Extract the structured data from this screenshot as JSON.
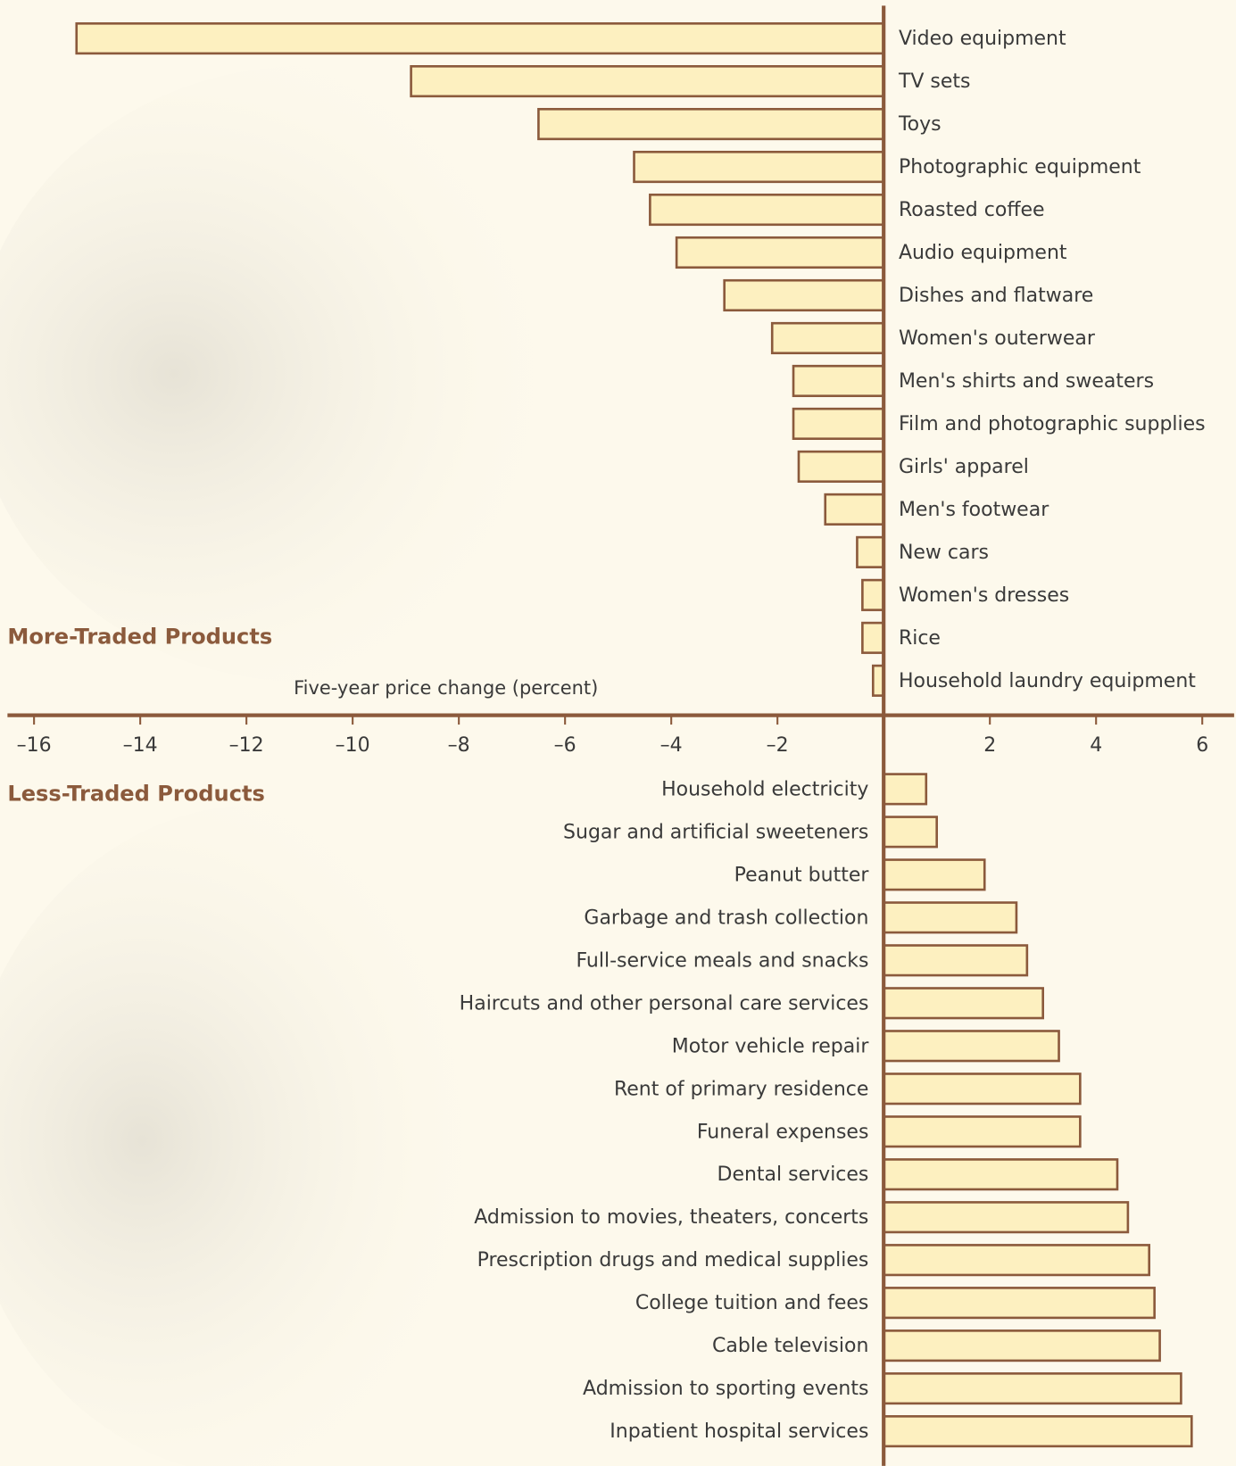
{
  "chart_data": {
    "type": "bar",
    "orientation": "horizontal",
    "x_label": "Five-year price change (percent)",
    "xlim": [
      -16.5,
      6.6
    ],
    "xticks": [
      {
        "value": -16,
        "label": "–16"
      },
      {
        "value": -14,
        "label": "–14"
      },
      {
        "value": -12,
        "label": "–12"
      },
      {
        "value": -10,
        "label": "–10"
      },
      {
        "value": -8,
        "label": "–8"
      },
      {
        "value": -6,
        "label": "–6"
      },
      {
        "value": -4,
        "label": "–4"
      },
      {
        "value": -2,
        "label": "–2"
      },
      2,
      4,
      6
    ],
    "color": "#fdf0c0",
    "edge_color": "#8b5a3c",
    "series": [
      {
        "name": "More-Traded Products",
        "categories": [
          "Video equipment",
          "TV sets",
          "Toys",
          "Photographic equipment",
          "Roasted coffee",
          "Audio equipment",
          "Dishes and flatware",
          "Women's outerwear",
          "Men's shirts and sweaters",
          "Film and photographic supplies",
          "Girls' apparel",
          "Men's footwear",
          "New cars",
          "Women's dresses",
          "Rice",
          "Household laundry equipment"
        ],
        "values": [
          -15.2,
          -8.9,
          -6.5,
          -4.7,
          -4.4,
          -3.9,
          -3.0,
          -2.1,
          -1.7,
          -1.7,
          -1.6,
          -1.1,
          -0.5,
          -0.4,
          -0.4,
          -0.2
        ]
      },
      {
        "name": "Less-Traded Products",
        "categories": [
          "Household electricity",
          "Sugar and artificial sweeteners",
          "Peanut butter",
          "Garbage and trash collection",
          "Full-service meals and snacks",
          "Haircuts and other personal care services",
          "Motor vehicle repair",
          "Rent of primary residence",
          "Funeral expenses",
          "Dental services",
          "Admission to movies, theaters, concerts",
          "Prescription drugs and medical supplies",
          "College tuition and fees",
          "Cable television",
          "Admission to sporting events",
          "Inpatient hospital services"
        ],
        "values": [
          0.8,
          1.0,
          1.9,
          2.5,
          2.7,
          3.0,
          3.3,
          3.7,
          3.7,
          4.4,
          4.6,
          5.0,
          5.1,
          5.2,
          5.6,
          5.8
        ]
      }
    ]
  }
}
